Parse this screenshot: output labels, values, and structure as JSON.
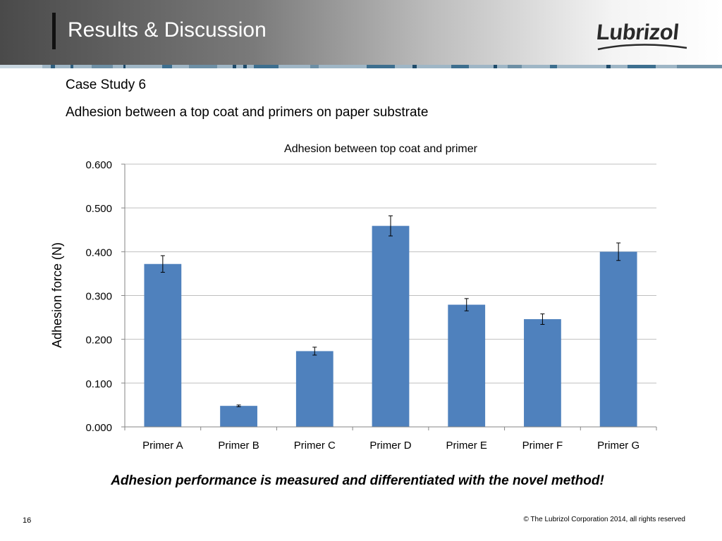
{
  "header": {
    "title": "Results & Discussion",
    "logo_text": "Lubrizol"
  },
  "slide": {
    "case_study": "Case Study 6",
    "subtitle": "Adhesion between a top coat and primers on paper substrate",
    "conclusion": "Adhesion performance is measured and differentiated with the novel method!",
    "page_number": "16",
    "copyright": "© The Lubrizol Corporation 2014, all rights reserved"
  },
  "colors": {
    "bar": "#4f81bd",
    "grid": "#bfbfbf",
    "axis": "#868686"
  },
  "chart_data": {
    "type": "bar",
    "title": "Adhesion between top coat and primer",
    "xlabel": "",
    "ylabel": "Adhesion force (N)",
    "categories": [
      "Primer A",
      "Primer B",
      "Primer C",
      "Primer D",
      "Primer E",
      "Primer F",
      "Primer G"
    ],
    "values": [
      0.372,
      0.048,
      0.173,
      0.459,
      0.279,
      0.246,
      0.4
    ],
    "error": [
      0.019,
      0.002,
      0.009,
      0.023,
      0.014,
      0.012,
      0.02
    ],
    "ylim": [
      0,
      0.6
    ],
    "yticks": [
      0.0,
      0.1,
      0.2,
      0.3,
      0.4,
      0.5,
      0.6
    ],
    "ytick_labels": [
      "0.000",
      "0.100",
      "0.200",
      "0.300",
      "0.400",
      "0.500",
      "0.600"
    ],
    "grid": true,
    "legend": "none"
  }
}
